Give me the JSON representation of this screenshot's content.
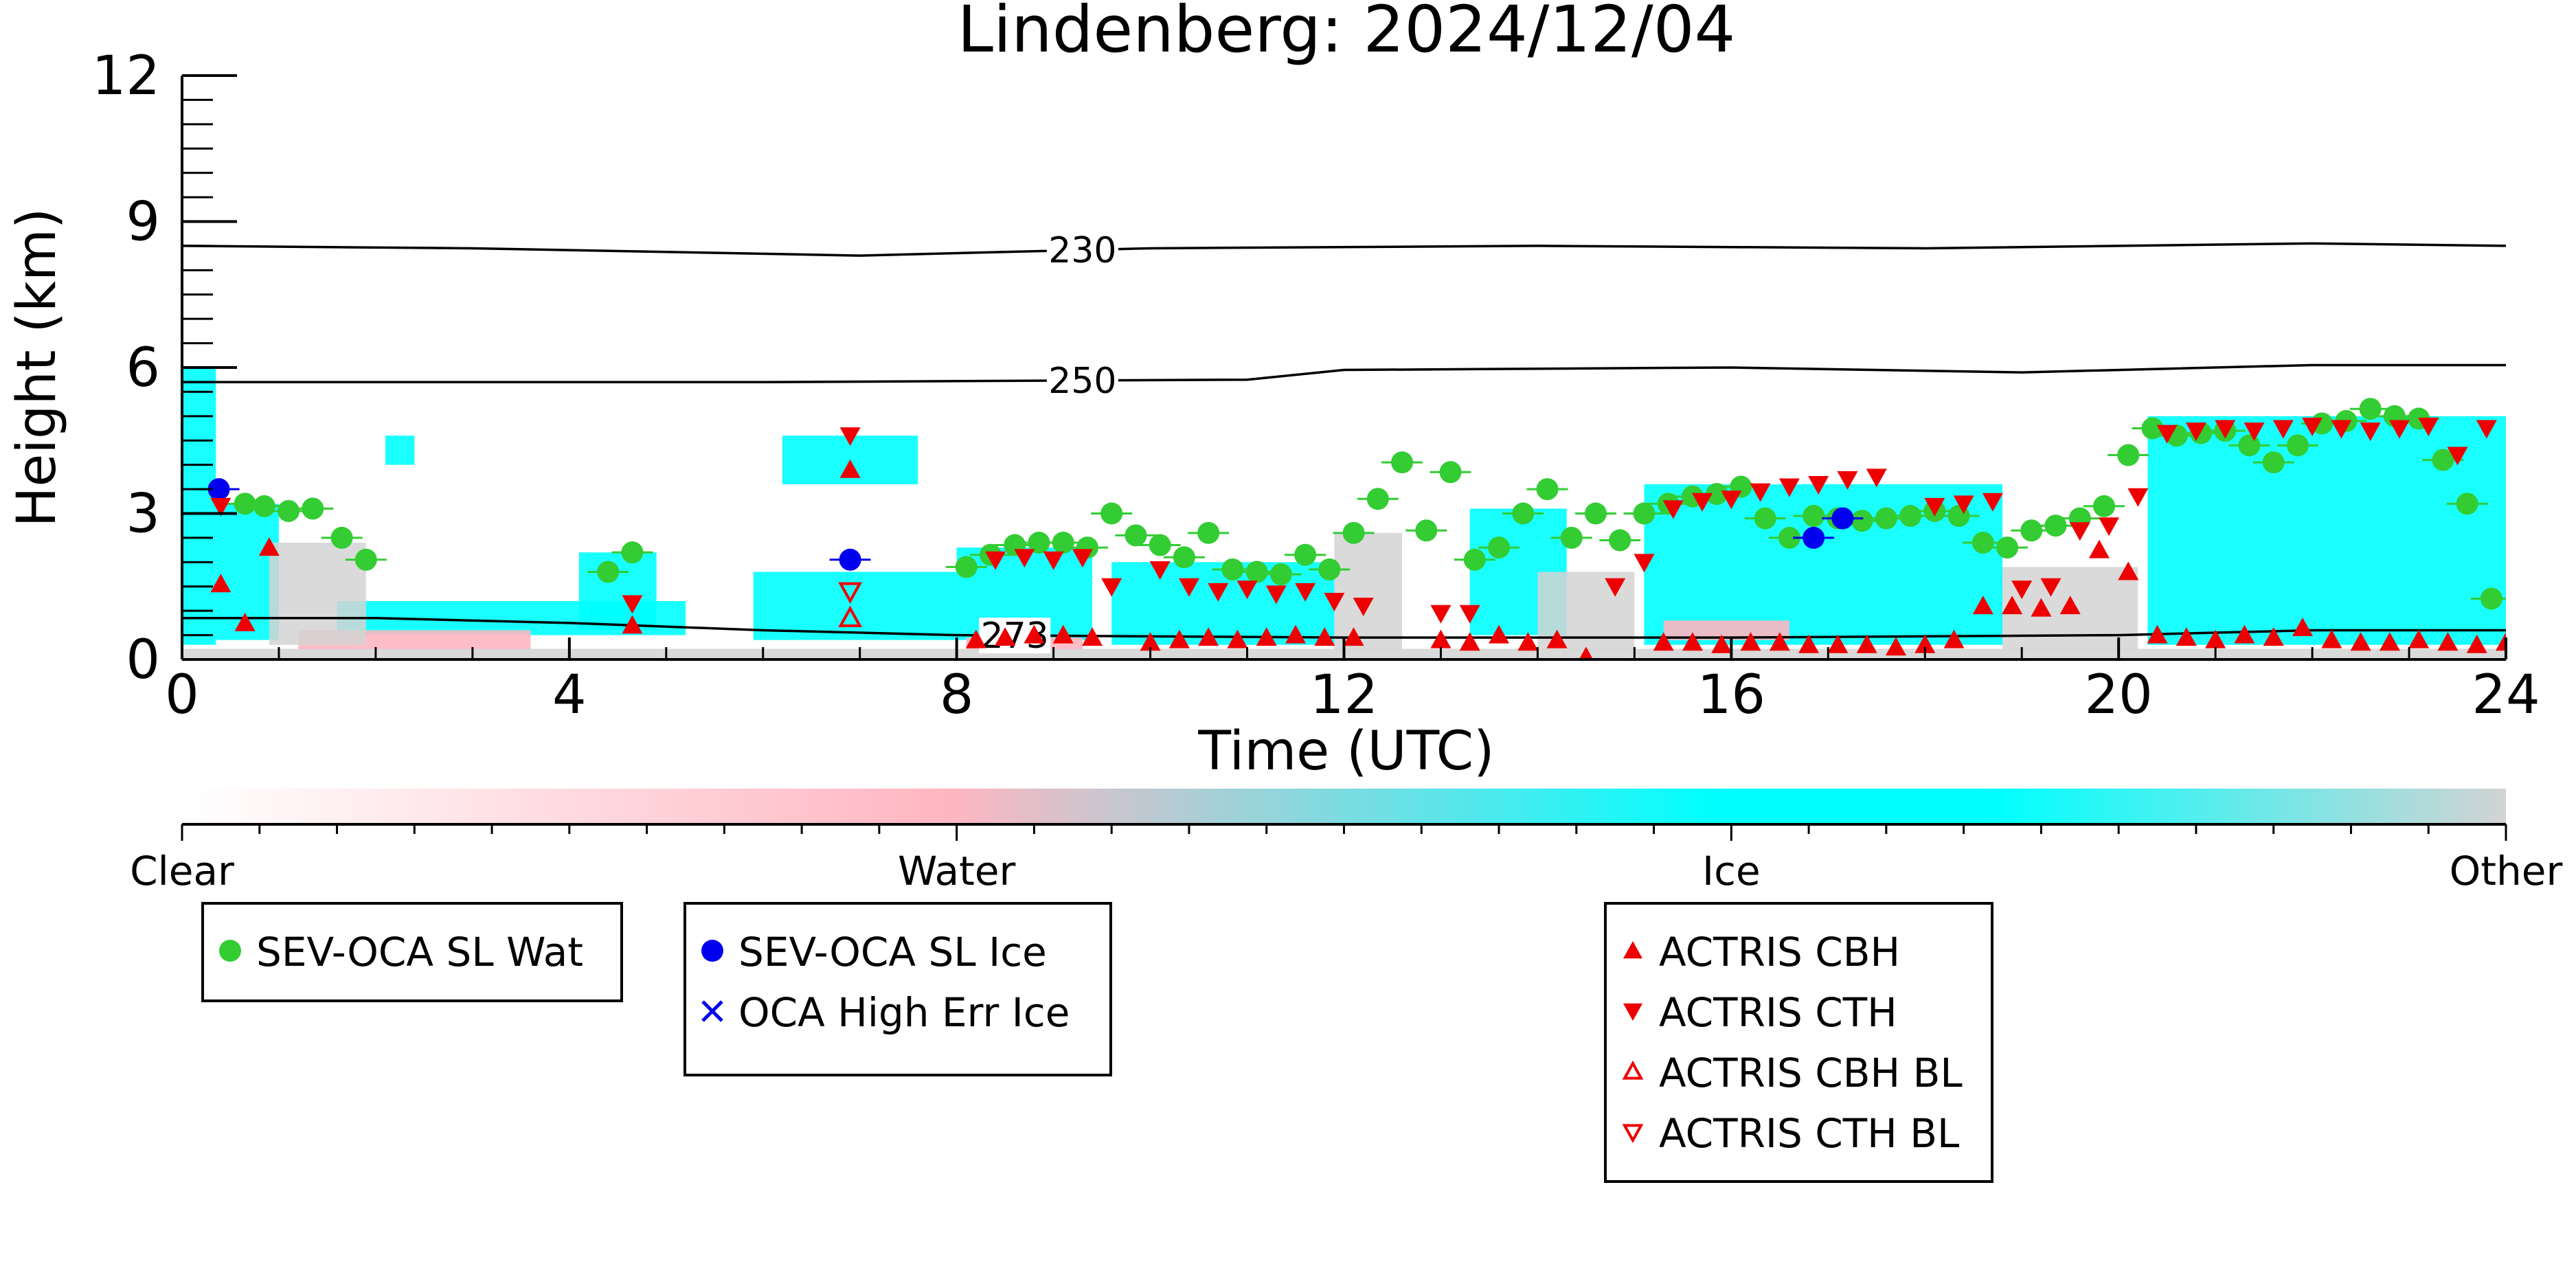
{
  "chart_data": {
    "type": "scatter",
    "title": "Lindenberg: 2024/12/04",
    "xlabel": "Time (UTC)",
    "ylabel": "Height (km)",
    "xlim": [
      0,
      24
    ],
    "ylim": [
      0,
      12
    ],
    "x_ticks": [
      0,
      4,
      8,
      12,
      16,
      20,
      24
    ],
    "y_ticks": [
      0,
      3,
      6,
      9,
      12
    ],
    "colors": {
      "clear": "#ffffff",
      "water": "#ffb6c1",
      "ice": "#00ffff",
      "other": "#d3d3d3",
      "wat_marker": "#33cc33",
      "ice_marker": "#0000ee",
      "actris": "#ee0000"
    },
    "colorbar": {
      "labels": [
        "Clear",
        "Water",
        "Ice",
        "Other"
      ]
    },
    "contours": [
      {
        "label": "230",
        "label_x": 9.3,
        "points": [
          [
            0,
            8.5
          ],
          [
            3,
            8.45
          ],
          [
            7,
            8.3
          ],
          [
            10,
            8.45
          ],
          [
            14,
            8.5
          ],
          [
            18,
            8.45
          ],
          [
            22,
            8.55
          ],
          [
            24,
            8.5
          ]
        ]
      },
      {
        "label": "250",
        "label_x": 9.3,
        "points": [
          [
            0,
            5.7
          ],
          [
            6,
            5.7
          ],
          [
            11,
            5.75
          ],
          [
            12,
            5.95
          ],
          [
            16,
            6.0
          ],
          [
            19,
            5.9
          ],
          [
            22,
            6.05
          ],
          [
            24,
            6.05
          ]
        ]
      },
      {
        "label": "273",
        "label_x": 8.6,
        "points": [
          [
            0,
            0.85
          ],
          [
            2,
            0.85
          ],
          [
            4,
            0.75
          ],
          [
            6,
            0.6
          ],
          [
            8,
            0.5
          ],
          [
            12,
            0.45
          ],
          [
            16,
            0.45
          ],
          [
            20,
            0.5
          ],
          [
            22,
            0.6
          ],
          [
            24,
            0.6
          ]
        ]
      }
    ],
    "cloud_regions": [
      {
        "phase": "ice",
        "x0": 0.0,
        "x1": 0.35,
        "y0": 0.3,
        "y1": 6.0
      },
      {
        "phase": "ice",
        "x0": 0.35,
        "x1": 1.0,
        "y0": 0.4,
        "y1": 3.2
      },
      {
        "phase": "ice",
        "x0": 2.1,
        "x1": 2.4,
        "y0": 4.0,
        "y1": 4.6
      },
      {
        "phase": "ice",
        "x0": 4.1,
        "x1": 4.9,
        "y0": 0.6,
        "y1": 2.2
      },
      {
        "phase": "ice",
        "x0": 1.6,
        "x1": 5.2,
        "y0": 0.5,
        "y1": 1.2
      },
      {
        "phase": "ice",
        "x0": 6.2,
        "x1": 7.6,
        "y0": 3.6,
        "y1": 4.6
      },
      {
        "phase": "ice",
        "x0": 5.9,
        "x1": 8.0,
        "y0": 0.4,
        "y1": 1.8
      },
      {
        "phase": "ice",
        "x0": 8.0,
        "x1": 9.4,
        "y0": 0.4,
        "y1": 2.3
      },
      {
        "phase": "ice",
        "x0": 9.6,
        "x1": 11.9,
        "y0": 0.3,
        "y1": 2.0
      },
      {
        "phase": "ice",
        "x0": 13.3,
        "x1": 14.3,
        "y0": 0.5,
        "y1": 3.1
      },
      {
        "phase": "ice",
        "x0": 15.1,
        "x1": 18.8,
        "y0": 0.3,
        "y1": 3.6
      },
      {
        "phase": "ice",
        "x0": 20.3,
        "x1": 24.0,
        "y0": 0.3,
        "y1": 5.0
      },
      {
        "phase": "water",
        "x0": 1.2,
        "x1": 3.6,
        "y0": 0.2,
        "y1": 0.6
      },
      {
        "phase": "water",
        "x0": 8.1,
        "x1": 9.3,
        "y0": 0.2,
        "y1": 0.45
      },
      {
        "phase": "water",
        "x0": 15.3,
        "x1": 16.6,
        "y0": 0.4,
        "y1": 0.8
      },
      {
        "phase": "other",
        "x0": 0.9,
        "x1": 1.9,
        "y0": 0.3,
        "y1": 2.4
      },
      {
        "phase": "other",
        "x0": 11.9,
        "x1": 12.6,
        "y0": 0.2,
        "y1": 2.6
      },
      {
        "phase": "other",
        "x0": 14.0,
        "x1": 15.0,
        "y0": 0.2,
        "y1": 1.8
      },
      {
        "phase": "other",
        "x0": 18.8,
        "x1": 20.2,
        "y0": 0.2,
        "y1": 1.9
      },
      {
        "phase": "other",
        "x0": 0.0,
        "x1": 24.0,
        "y0": 0.0,
        "y1": 0.22
      }
    ],
    "series": [
      {
        "name": "SEV-OCA SL Wat",
        "marker": "circle",
        "color": "#33cc33",
        "x": [
          0.65,
          0.85,
          1.1,
          1.35,
          1.65,
          1.9,
          4.4,
          4.65,
          8.1,
          8.35,
          8.6,
          8.85,
          9.1,
          9.35,
          9.6,
          9.85,
          10.1,
          10.35,
          10.6,
          10.85,
          11.1,
          11.35,
          11.6,
          11.85,
          12.1,
          12.35,
          12.6,
          12.85,
          13.1,
          13.35,
          13.6,
          13.85,
          14.1,
          14.35,
          14.6,
          14.85,
          15.1,
          15.35,
          15.6,
          15.85,
          16.1,
          16.35,
          16.6,
          16.85,
          17.1,
          17.35,
          17.6,
          17.85,
          18.1,
          18.35,
          18.6,
          18.85,
          19.1,
          19.35,
          19.6,
          19.85,
          20.1,
          20.35,
          20.6,
          20.85,
          21.1,
          21.35,
          21.6,
          21.85,
          22.1,
          22.35,
          22.6,
          22.85,
          23.1,
          23.35,
          23.6,
          23.85
        ],
        "y": [
          3.2,
          3.15,
          3.05,
          3.1,
          2.5,
          2.05,
          1.8,
          2.2,
          1.9,
          2.15,
          2.35,
          2.4,
          2.4,
          2.3,
          3.0,
          2.55,
          2.35,
          2.1,
          2.6,
          1.85,
          1.8,
          1.75,
          2.15,
          1.85,
          2.6,
          3.3,
          4.05,
          2.65,
          3.85,
          2.05,
          2.3,
          3.0,
          3.5,
          2.5,
          3.0,
          2.45,
          3.0,
          3.2,
          3.35,
          3.4,
          3.55,
          2.9,
          2.5,
          2.95,
          2.9,
          2.85,
          2.9,
          2.95,
          3.05,
          2.95,
          2.4,
          2.3,
          2.65,
          2.75,
          2.9,
          3.15,
          4.2,
          4.75,
          4.6,
          4.65,
          4.7,
          4.4,
          4.05,
          4.4,
          4.85,
          4.9,
          5.15,
          5.0,
          4.95,
          4.1,
          3.2,
          1.25
        ]
      },
      {
        "name": "SEV-OCA SL Ice",
        "marker": "circle",
        "color": "#0000ee",
        "x": [
          0.38,
          6.9,
          16.85,
          17.15
        ],
        "y": [
          3.5,
          2.05,
          2.5,
          2.9
        ]
      },
      {
        "name": "OCA High Err Ice",
        "marker": "x",
        "color": "#0000ee",
        "x": [],
        "y": []
      },
      {
        "name": "ACTRIS CBH",
        "marker": "triangle-up",
        "color": "#ee0000",
        "x": [
          0.4,
          0.65,
          0.9,
          4.65,
          6.9,
          8.2,
          8.5,
          8.8,
          9.1,
          9.4,
          10.0,
          10.3,
          10.6,
          10.9,
          11.2,
          11.5,
          11.8,
          12.1,
          13.0,
          13.3,
          13.6,
          13.9,
          14.2,
          14.5,
          15.3,
          15.6,
          15.9,
          16.2,
          16.5,
          16.8,
          17.1,
          17.4,
          17.7,
          18.0,
          18.3,
          18.6,
          18.9,
          19.2,
          19.5,
          19.8,
          20.1,
          20.4,
          20.7,
          21.0,
          21.3,
          21.6,
          21.9,
          22.2,
          22.5,
          22.8,
          23.1,
          23.4,
          23.7,
          24.0
        ],
        "y": [
          1.55,
          0.75,
          2.3,
          0.7,
          3.9,
          0.4,
          0.45,
          0.5,
          0.5,
          0.45,
          0.35,
          0.4,
          0.45,
          0.4,
          0.45,
          0.5,
          0.45,
          0.45,
          0.4,
          0.35,
          0.5,
          0.35,
          0.4,
          0.05,
          0.35,
          0.35,
          0.3,
          0.35,
          0.35,
          0.3,
          0.3,
          0.3,
          0.25,
          0.3,
          0.4,
          1.1,
          1.1,
          1.05,
          1.1,
          2.25,
          1.8,
          0.5,
          0.45,
          0.4,
          0.5,
          0.45,
          0.65,
          0.4,
          0.35,
          0.35,
          0.4,
          0.35,
          0.3,
          0.35
        ]
      },
      {
        "name": "ACTRIS CTH",
        "marker": "triangle-down",
        "color": "#ee0000",
        "x": [
          0.4,
          4.65,
          6.9,
          8.4,
          8.7,
          9.0,
          9.3,
          9.6,
          10.1,
          10.4,
          10.7,
          11.0,
          11.3,
          11.6,
          11.9,
          12.2,
          13.0,
          13.3,
          14.8,
          15.1,
          15.4,
          15.7,
          16.0,
          16.3,
          16.6,
          16.9,
          17.2,
          17.5,
          18.1,
          18.4,
          18.7,
          19.0,
          19.3,
          19.6,
          19.9,
          20.2,
          20.5,
          20.8,
          21.1,
          21.4,
          21.7,
          22.0,
          22.3,
          22.6,
          22.9,
          23.2,
          23.5,
          23.8
        ],
        "y": [
          3.15,
          1.15,
          4.6,
          2.05,
          2.1,
          2.05,
          2.1,
          1.5,
          1.85,
          1.5,
          1.4,
          1.45,
          1.35,
          1.4,
          1.2,
          1.1,
          0.95,
          0.95,
          1.5,
          2.0,
          3.1,
          3.25,
          3.3,
          3.45,
          3.55,
          3.6,
          3.7,
          3.75,
          3.15,
          3.2,
          3.25,
          1.45,
          1.5,
          2.65,
          2.75,
          3.35,
          4.65,
          4.7,
          4.75,
          4.7,
          4.75,
          4.8,
          4.75,
          4.7,
          4.75,
          4.8,
          4.2,
          4.75
        ]
      },
      {
        "name": "ACTRIS CBH BL",
        "marker": "triangle-up-open",
        "color": "#ee0000",
        "x": [
          6.9
        ],
        "y": [
          0.85
        ]
      },
      {
        "name": "ACTRIS CTH BL",
        "marker": "triangle-down-open",
        "color": "#ee0000",
        "x": [
          6.9
        ],
        "y": [
          1.4
        ]
      }
    ],
    "legend": {
      "boxes": [
        {
          "position": "left",
          "entries": [
            "SEV-OCA SL Wat"
          ]
        },
        {
          "position": "center-left",
          "entries": [
            "SEV-OCA SL Ice",
            "OCA High Err Ice"
          ]
        },
        {
          "position": "center-right",
          "entries": [
            "ACTRIS CBH",
            "ACTRIS CTH",
            "ACTRIS CBH BL",
            "ACTRIS CTH BL"
          ]
        }
      ]
    }
  }
}
